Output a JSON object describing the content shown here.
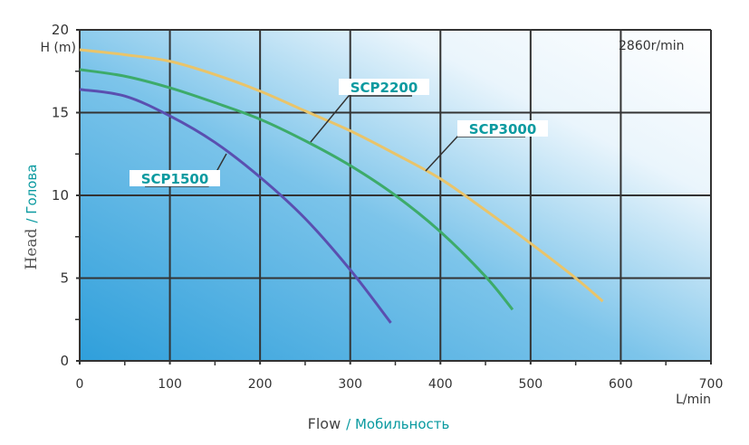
{
  "chart_data": {
    "type": "line",
    "title": "",
    "annotation": "2860r/min",
    "xlabel": "Flow",
    "xlabel_translation": "/ Мобильность",
    "xunit": "L/min",
    "ylabel": "Head",
    "ylabel_translation": "/ Голова",
    "yunit": "H (m)",
    "xlim": [
      0,
      700
    ],
    "ylim": [
      0,
      20
    ],
    "xticks": [
      "0",
      "100",
      "200",
      "300",
      "400",
      "500",
      "600",
      "700"
    ],
    "yticks": [
      "0",
      "5",
      "10",
      "15",
      "20"
    ],
    "grid": true,
    "colors": {
      "label": "#0a9aa0",
      "bg_dark": "#2f9fdb",
      "bg_light": "#ffffff"
    },
    "series": [
      {
        "name": "SCP1500",
        "color": "#5a4fb0",
        "x": [
          0,
          50,
          100,
          150,
          200,
          250,
          300,
          345
        ],
        "y": [
          16.4,
          16.0,
          14.8,
          13.2,
          11.1,
          8.6,
          5.5,
          2.3
        ]
      },
      {
        "name": "SCP2200",
        "color": "#3dab6a",
        "x": [
          0,
          50,
          100,
          150,
          200,
          250,
          300,
          350,
          400,
          450,
          480
        ],
        "y": [
          17.6,
          17.2,
          16.5,
          15.6,
          14.6,
          13.3,
          11.8,
          10.0,
          7.8,
          5.1,
          3.1
        ]
      },
      {
        "name": "SCP3000",
        "color": "#e9c46a",
        "x": [
          0,
          50,
          100,
          150,
          200,
          250,
          300,
          350,
          400,
          450,
          500,
          550,
          580
        ],
        "y": [
          18.8,
          18.5,
          18.1,
          17.3,
          16.3,
          15.1,
          13.9,
          12.5,
          11.0,
          9.1,
          7.1,
          5.0,
          3.6
        ]
      }
    ]
  }
}
